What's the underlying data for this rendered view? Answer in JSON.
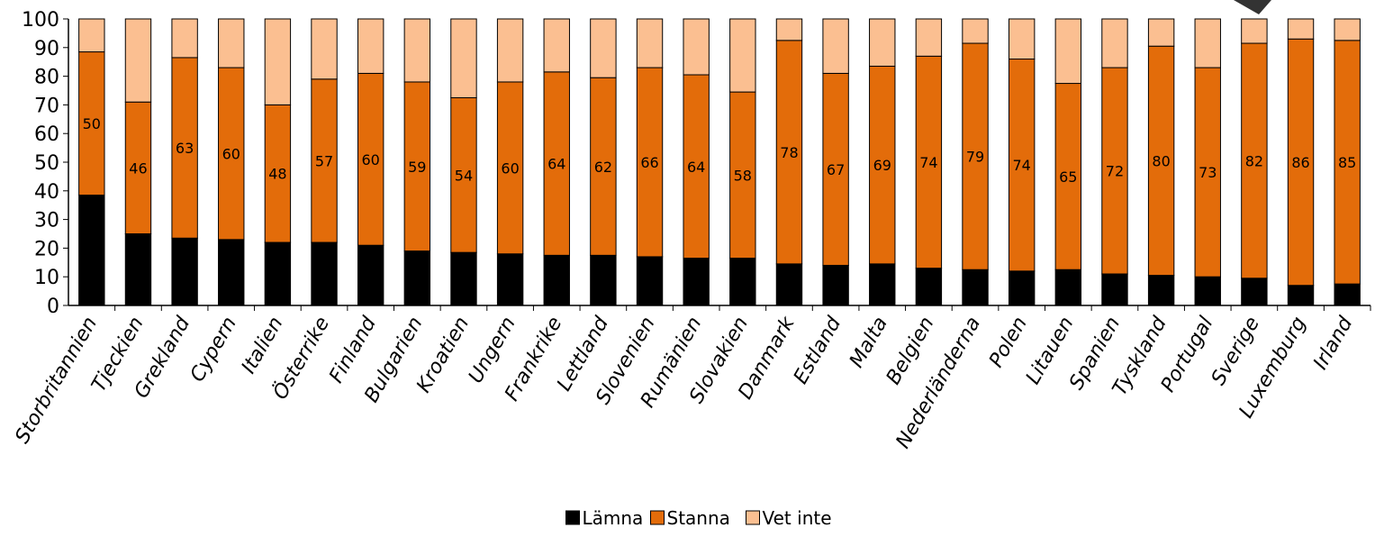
{
  "chart_data": {
    "type": "bar",
    "stacked": true,
    "title": "",
    "xlabel": "",
    "ylabel": "",
    "ylim": [
      0,
      100
    ],
    "yticks": [
      0,
      10,
      20,
      30,
      40,
      50,
      60,
      70,
      80,
      90,
      100
    ],
    "grid": false,
    "legend_position": "bottom",
    "categories": [
      "Storbritannien",
      "Tjeckien",
      "Grekland",
      "Cypern",
      "Italien",
      "Österrike",
      "Finland",
      "Bulgarien",
      "Kroatien",
      "Ungern",
      "Frankrike",
      "Lettland",
      "Slovenien",
      "Rumänien",
      "Slovakien",
      "Danmark",
      "Estland",
      "Malta",
      "Belgien",
      "Nederländerna",
      "Polen",
      "Litauen",
      "Spanien",
      "Tyskland",
      "Portugal",
      "Sverige",
      "Luxemburg",
      "Irland"
    ],
    "series": [
      {
        "name": "Lämna",
        "color": "#000000",
        "values": [
          38.5,
          25,
          23.5,
          23,
          22,
          22,
          21,
          19,
          18.5,
          18,
          17.5,
          17.5,
          17,
          16.5,
          16.5,
          14.5,
          14,
          14.5,
          13,
          12.5,
          12,
          12.5,
          11,
          10.5,
          10,
          9.5,
          7,
          7.5
        ]
      },
      {
        "name": "Stanna",
        "color": "#E36C0A",
        "values": [
          50,
          46,
          63,
          60,
          48,
          57,
          60,
          59,
          54,
          60,
          64,
          62,
          66,
          64,
          58,
          78,
          67,
          69,
          74,
          79,
          74,
          65,
          72,
          80,
          73,
          82,
          86,
          85
        ]
      },
      {
        "name": "Vet inte",
        "color": "#FBBF91",
        "values": [
          11.5,
          29,
          13.5,
          17,
          30,
          21,
          19,
          22,
          27.5,
          22,
          18.5,
          20.5,
          17,
          19.5,
          25.5,
          7.5,
          19,
          16.5,
          13,
          8.5,
          14,
          22.5,
          17,
          9.5,
          17,
          8.5,
          7,
          7.5
        ]
      }
    ],
    "data_labels_series": "Stanna"
  }
}
